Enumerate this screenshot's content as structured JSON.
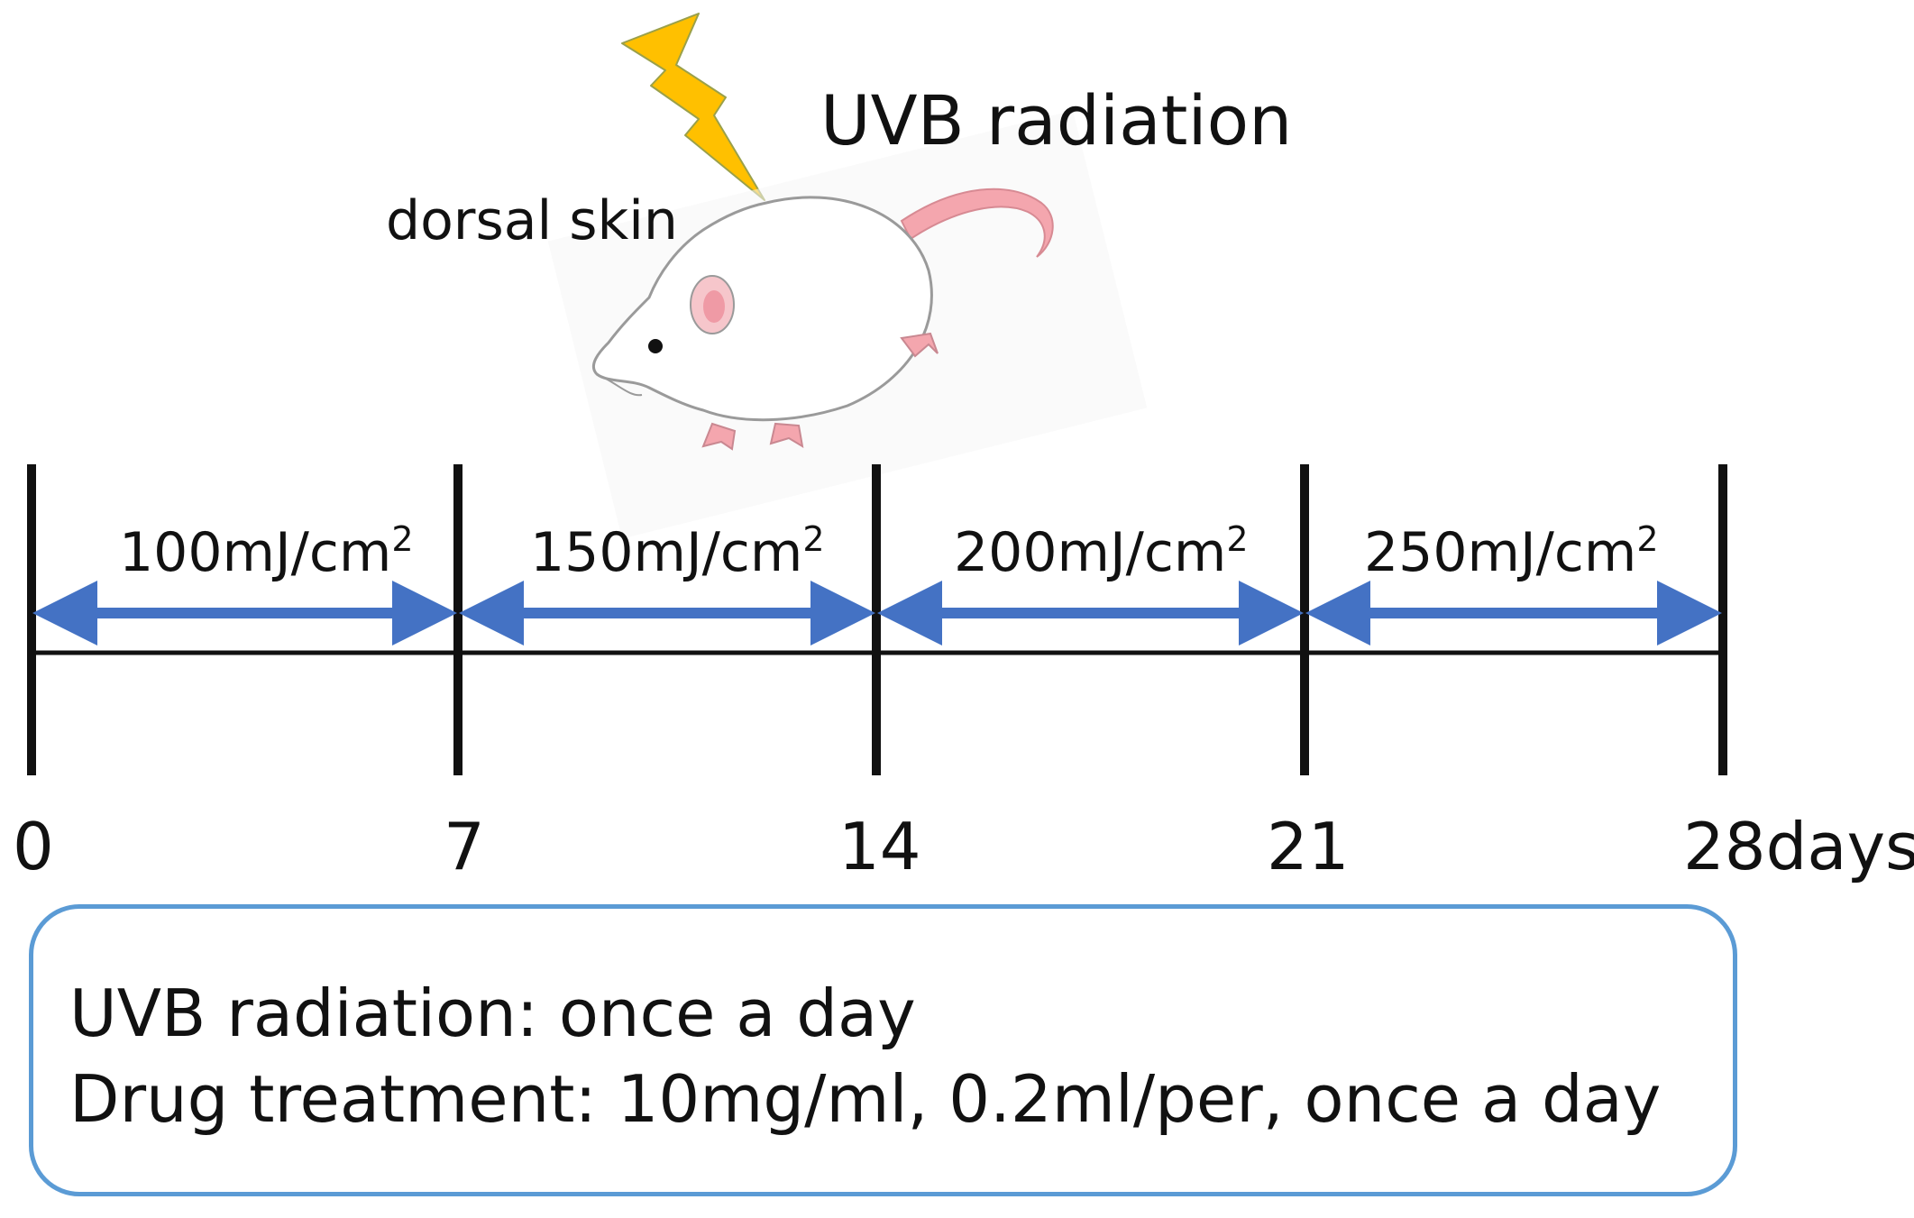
{
  "title": "UVB radiation",
  "site_label": "dorsal skin",
  "tick_labels": [
    "0",
    "7",
    "14",
    "21",
    "28days"
  ],
  "doses": [
    {
      "value": "100mJ/cm",
      "sup": "2"
    },
    {
      "value": "150mJ/cm",
      "sup": "2"
    },
    {
      "value": "200mJ/cm",
      "sup": "2"
    },
    {
      "value": "250mJ/cm",
      "sup": "2"
    }
  ],
  "notes": {
    "line1": "UVB radiation: once a day",
    "line2": "Drug treatment: 10mg/ml, 0.2ml/per, once a day"
  },
  "colors": {
    "arrow": "#4472c4",
    "bolt": "#ffc000",
    "box_border": "#5b9bd5",
    "axis": "#111111"
  },
  "icons": [
    "lightning-bolt-icon",
    "rat-icon"
  ]
}
